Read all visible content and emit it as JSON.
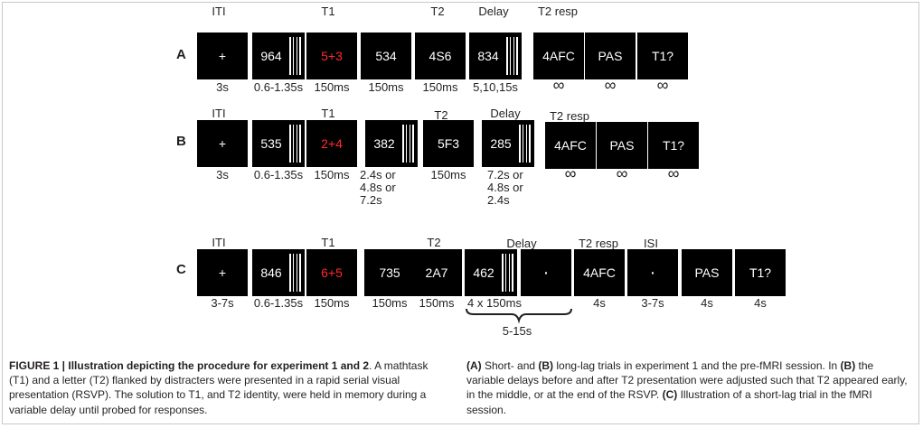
{
  "rows": [
    {
      "label": "A",
      "headers": {
        "iti": "ITI",
        "t1": "T1",
        "t2": "T2",
        "delay": "Delay",
        "t2resp": "T2 resp"
      },
      "boxes": [
        {
          "text": "+",
          "mask": false,
          "red": false,
          "dur": "3s"
        },
        {
          "text": "964",
          "mask": true,
          "red": false,
          "dur": "0.6-1.35s"
        },
        {
          "text": "5+3",
          "mask": false,
          "red": true,
          "dur": "150ms"
        },
        {
          "text": "534",
          "mask": false,
          "red": false,
          "dur": "150ms"
        },
        {
          "text": "4S6",
          "mask": false,
          "red": false,
          "dur": "150ms"
        },
        {
          "text": "834",
          "mask": true,
          "red": false,
          "dur": "5,10,15s"
        },
        {
          "text": "4AFC",
          "mask": false,
          "red": false,
          "dur": "∞"
        },
        {
          "text": "PAS",
          "mask": false,
          "red": false,
          "dur": "∞"
        },
        {
          "text": "T1?",
          "mask": false,
          "red": false,
          "dur": "∞"
        }
      ]
    },
    {
      "label": "B",
      "headers": {
        "iti": "ITI",
        "t1": "T1",
        "t2": "T2",
        "delay": "Delay",
        "t2resp": "T2 resp"
      },
      "boxes": [
        {
          "text": "+",
          "mask": false,
          "red": false,
          "dur": "3s"
        },
        {
          "text": "535",
          "mask": true,
          "red": false,
          "dur": "0.6-1.35s"
        },
        {
          "text": "2+4",
          "mask": false,
          "red": true,
          "dur": "150ms"
        },
        {
          "text": "382",
          "mask": true,
          "red": false,
          "dur": "2.4s or\n4.8s or\n7.2s"
        },
        {
          "text": "5F3",
          "mask": false,
          "red": false,
          "dur": "150ms"
        },
        {
          "text": "285",
          "mask": true,
          "red": false,
          "dur": "7.2s or\n4.8s or\n2.4s"
        },
        {
          "text": "4AFC",
          "mask": false,
          "red": false,
          "dur": "∞"
        },
        {
          "text": "PAS",
          "mask": false,
          "red": false,
          "dur": "∞"
        },
        {
          "text": "T1?",
          "mask": false,
          "red": false,
          "dur": "∞"
        }
      ]
    },
    {
      "label": "C",
      "headers": {
        "iti": "ITI",
        "t1": "T1",
        "t2": "T2",
        "delay": "Delay",
        "t2resp": "T2 resp",
        "isi": "ISI"
      },
      "boxes": [
        {
          "text": "+",
          "mask": false,
          "red": false,
          "dur": "3-7s"
        },
        {
          "text": "846",
          "mask": true,
          "red": false,
          "dur": "0.6-1.35s"
        },
        {
          "text": "6+5",
          "mask": false,
          "red": true,
          "dur": "150ms"
        },
        {
          "text": "735",
          "mask": false,
          "red": false,
          "dur": "150ms"
        },
        {
          "text": "2A7",
          "mask": false,
          "red": false,
          "dur": "150ms"
        },
        {
          "text": "462",
          "mask": true,
          "red": false,
          "dur": "4 x 150ms"
        },
        {
          "text": "·",
          "mask": false,
          "red": false,
          "dur": ""
        },
        {
          "text": "4AFC",
          "mask": false,
          "red": false,
          "dur": "4s"
        },
        {
          "text": "·",
          "mask": false,
          "red": false,
          "dur": "3-7s"
        },
        {
          "text": "PAS",
          "mask": false,
          "red": false,
          "dur": "4s"
        },
        {
          "text": "T1?",
          "mask": false,
          "red": false,
          "dur": "4s"
        }
      ],
      "brace_label": "5-15s"
    }
  ],
  "caption": {
    "left_bold": "FIGURE 1 | Illustration depicting the procedure for experiment 1 and 2",
    "left_rest": ". A mathtask (T1) and a letter (T2) flanked by distracters were presented in a rapid serial visual presentation (RSVP). The solution to T1, and T2 identity, were held in memory during a variable delay until probed for responses.",
    "right_a_bold": "(A)",
    "right_a": " Short- and ",
    "right_b_bold": "(B)",
    "right_b": " long-lag trials in experiment 1 and the pre-fMRI session. In ",
    "right_b2_bold": "(B)",
    "right_b2": " the variable delays before and after T2 presentation were adjusted such that T2 appeared early, in the middle, or at the end of the RSVP. ",
    "right_c_bold": "(C)",
    "right_c": " Illustration of a short-lag trial in the fMRI session."
  },
  "colors": {
    "target_red": "#ff2a2a",
    "box_bg": "#000000",
    "frame": "#c8c8c8"
  }
}
